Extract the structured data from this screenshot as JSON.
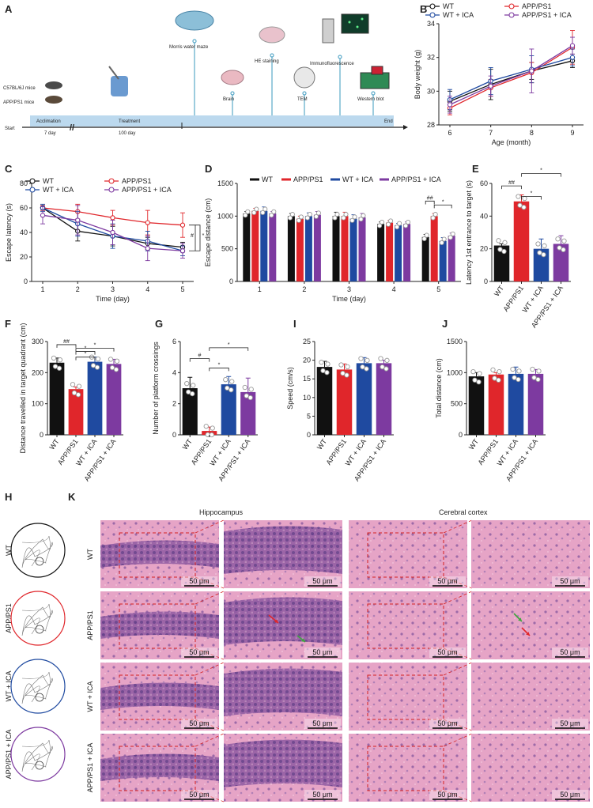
{
  "panels": {
    "A": "A",
    "B": "B",
    "C": "C",
    "D": "D",
    "E": "E",
    "F": "F",
    "G": "G",
    "H": "H",
    "I": "I",
    "J": "J",
    "K": "K"
  },
  "colors": {
    "WT": "#111111",
    "APP/PS1": "#e0262b",
    "WT + ICA": "#1f4aa0",
    "APP/PS1 + ICA": "#7d3aa0",
    "timeline": "#bcd9ee",
    "stem": "#5aa9c9"
  },
  "groups": [
    "WT",
    "APP/PS1",
    "WT + ICA",
    "APP/PS1 + ICA"
  ],
  "timeline": {
    "start": "Start",
    "end": "End",
    "acclimation": "Acclimation",
    "acclimation_days": "7 day",
    "treatment": "Treatment",
    "treatment_days": "100 day",
    "mice1": "C57BL/6J mice",
    "mice2": "APP/PS1 mice",
    "events": [
      "Morris water maze",
      "HE staining",
      "Immunofluorescence",
      "Brain",
      "TEM",
      "Western blot"
    ]
  },
  "chart_data": [
    {
      "id": "B",
      "type": "line",
      "xlabel": "Age (month)",
      "ylabel": "Body weight (g)",
      "x": [
        6,
        7,
        8,
        9
      ],
      "ylim": [
        28,
        34
      ],
      "yticks": [
        28,
        30,
        32,
        34
      ],
      "series": [
        {
          "name": "WT",
          "values": [
            29.4,
            30.4,
            31.2,
            31.8
          ],
          "err": [
            0.6,
            0.9,
            0.5,
            0.4
          ]
        },
        {
          "name": "APP/PS1",
          "values": [
            29.0,
            30.2,
            31.1,
            32.6
          ],
          "err": [
            0.4,
            0.5,
            0.6,
            1.0
          ]
        },
        {
          "name": "WT + ICA",
          "values": [
            29.5,
            30.6,
            31.3,
            32.0
          ],
          "err": [
            0.6,
            0.8,
            0.8,
            0.5
          ]
        },
        {
          "name": "APP/PS1 + ICA",
          "values": [
            29.2,
            30.3,
            31.2,
            32.7
          ],
          "err": [
            0.5,
            0.6,
            1.3,
            0.5
          ]
        }
      ]
    },
    {
      "id": "C",
      "type": "line",
      "xlabel": "Time (day)",
      "ylabel": "Escape latency (s)",
      "x": [
        1,
        2,
        3,
        4,
        5
      ],
      "ylim": [
        0,
        80
      ],
      "yticks": [
        0,
        20,
        40,
        60,
        80
      ],
      "annotations": [
        "#",
        "*"
      ],
      "series": [
        {
          "name": "WT",
          "values": [
            60,
            41,
            37,
            31,
            28
          ],
          "err": [
            2,
            8,
            8,
            5,
            4
          ]
        },
        {
          "name": "APP/PS1",
          "values": [
            60,
            57,
            52,
            48,
            46
          ],
          "err": [
            2,
            6,
            6,
            10,
            10
          ]
        },
        {
          "name": "WT + ICA",
          "values": [
            60,
            47,
            37,
            33,
            25
          ],
          "err": [
            3,
            10,
            10,
            8,
            4
          ]
        },
        {
          "name": "APP/PS1 + ICA",
          "values": [
            54,
            50,
            40,
            27,
            25
          ],
          "err": [
            7,
            12,
            10,
            10,
            6
          ]
        }
      ]
    },
    {
      "id": "D",
      "type": "bar",
      "xlabel": "Time (day)",
      "ylabel": "Escape distance (cm)",
      "categories": [
        "1",
        "2",
        "3",
        "4",
        "5"
      ],
      "ylim": [
        0,
        1500
      ],
      "yticks": [
        0,
        500,
        1000,
        1500
      ],
      "annotations": [
        "##",
        "*"
      ],
      "series": [
        {
          "name": "WT",
          "values": [
            1040,
            1000,
            1000,
            880,
            680
          ],
          "err": [
            30,
            40,
            60,
            30,
            40
          ]
        },
        {
          "name": "APP/PS1",
          "values": [
            1080,
            960,
            1000,
            900,
            1000
          ],
          "err": [
            40,
            40,
            60,
            30,
            40
          ]
        },
        {
          "name": "WT + ICA",
          "values": [
            1080,
            1000,
            960,
            860,
            620
          ],
          "err": [
            60,
            50,
            60,
            30,
            50
          ]
        },
        {
          "name": "APP/PS1 + ICA",
          "values": [
            1040,
            1020,
            980,
            880,
            700
          ],
          "err": [
            30,
            50,
            60,
            30,
            40
          ]
        }
      ]
    },
    {
      "id": "E",
      "type": "bar",
      "ylabel": "Latency 1st entrance to target (s)",
      "categories": [
        "WT",
        "APP/PS1",
        "WT + ICA",
        "APP/PS1 + ICA"
      ],
      "values": [
        22,
        49,
        20,
        23
      ],
      "err": [
        1,
        4,
        6,
        5
      ],
      "ylim": [
        0,
        60
      ],
      "yticks": [
        0,
        20,
        40,
        60
      ],
      "annotations": [
        "##",
        "*",
        "*"
      ]
    },
    {
      "id": "F",
      "type": "bar",
      "ylabel": "Distance travelled in target quadrant (cm)",
      "categories": [
        "WT",
        "APP/PS1",
        "WT + ICA",
        "APP/PS1 + ICA"
      ],
      "values": [
        232,
        147,
        235,
        228
      ],
      "err": [
        15,
        7,
        15,
        15
      ],
      "ylim": [
        0,
        300
      ],
      "yticks": [
        0,
        100,
        200,
        300
      ],
      "annotations": [
        "##",
        "*",
        "*",
        "*"
      ]
    },
    {
      "id": "G",
      "type": "bar",
      "ylabel": "Number of platform crossings",
      "categories": [
        "WT",
        "APP/PS1",
        "WT + ICA",
        "APP/PS1 + ICA"
      ],
      "values": [
        3.0,
        0.25,
        3.25,
        2.75
      ],
      "err": [
        0.7,
        0.25,
        0.5,
        0.9
      ],
      "ylim": [
        0,
        6
      ],
      "yticks": [
        0,
        2,
        4,
        6
      ],
      "annotations": [
        "#",
        "*",
        "*"
      ]
    },
    {
      "id": "I",
      "type": "bar",
      "ylabel": "Speed (cm/s)",
      "categories": [
        "WT",
        "APP/PS1",
        "WT + ICA",
        "APP/PS1 + ICA"
      ],
      "values": [
        18.2,
        17.5,
        19.2,
        19.2
      ],
      "err": [
        1.5,
        1.5,
        1.5,
        0.8
      ],
      "ylim": [
        0,
        25
      ],
      "yticks": [
        0,
        5,
        10,
        15,
        20,
        25
      ]
    },
    {
      "id": "J",
      "type": "bar",
      "ylabel": "Total distance (cm)",
      "categories": [
        "WT",
        "APP/PS1",
        "WT + ICA",
        "APP/PS1 + ICA"
      ],
      "values": [
        940,
        970,
        980,
        980
      ],
      "err": [
        60,
        30,
        110,
        70
      ],
      "ylim": [
        0,
        1500
      ],
      "yticks": [
        0,
        500,
        1000,
        1500
      ]
    }
  ],
  "histology": {
    "hippocampus": "Hippocampus",
    "cortex": "Cerebral cortex",
    "scale": "50 μm",
    "rows": [
      "WT",
      "APP/PS1",
      "WT + ICA",
      "APP/PS1 + ICA"
    ]
  }
}
